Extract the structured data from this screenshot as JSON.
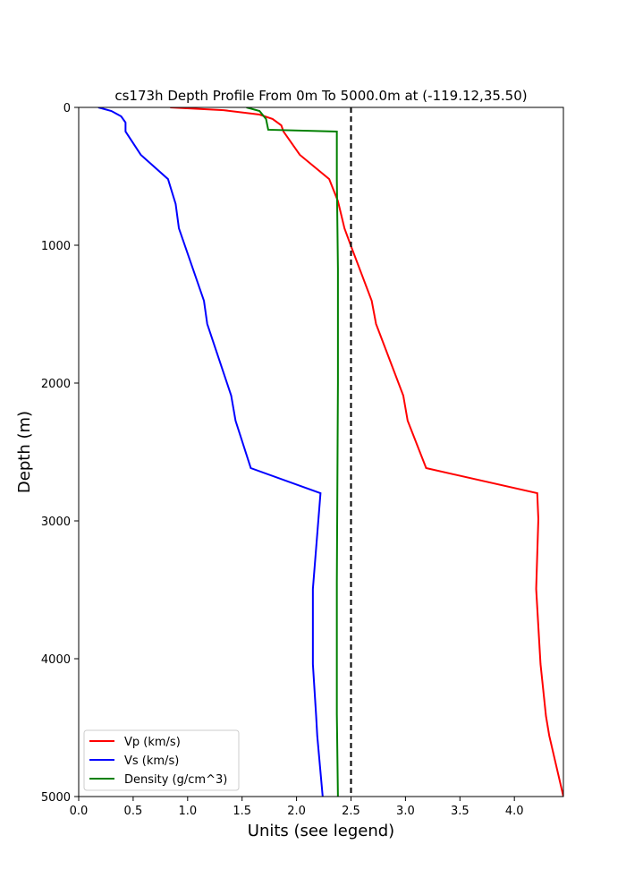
{
  "chart_data": {
    "type": "line",
    "title": "cs173h Depth Profile From 0m To 5000.0m at (-119.12,35.50)",
    "xlabel": "Units (see legend)",
    "ylabel": "Depth (m)",
    "xlim": [
      0,
      4.45
    ],
    "ylim": [
      5000,
      0
    ],
    "xticks": [
      "0.0",
      "0.5",
      "1.0",
      "1.5",
      "2.0",
      "2.5",
      "3.0",
      "3.5",
      "4.0"
    ],
    "yticks": [
      "0",
      "1000",
      "2000",
      "3000",
      "4000",
      "5000"
    ],
    "legend_position": "lower-left",
    "reference_line": {
      "x": 2.5,
      "style": "dashed",
      "color": "#000000"
    },
    "series": [
      {
        "name": "Vp (km/s)",
        "color": "#ff0000",
        "x": [
          0.84,
          1.33,
          1.66,
          1.78,
          1.86,
          1.88,
          2.03,
          2.3,
          2.38,
          2.44,
          2.5,
          2.69,
          2.73,
          2.98,
          3.02,
          3.19,
          4.21,
          4.22,
          4.2,
          4.24,
          4.29,
          4.32,
          4.45
        ],
        "depth": [
          0,
          20,
          52,
          84,
          130,
          175,
          344,
          520,
          680,
          877,
          1006,
          1403,
          1571,
          2091,
          2273,
          2617,
          2799,
          2987,
          3494,
          4039,
          4416,
          4558,
          5000
        ]
      },
      {
        "name": "Vs (km/s)",
        "color": "#0000ff",
        "x": [
          0.18,
          0.3,
          0.39,
          0.43,
          0.43,
          0.57,
          0.82,
          0.89,
          0.92,
          1.15,
          1.18,
          1.4,
          1.44,
          1.58,
          2.22,
          2.15,
          2.15,
          2.18,
          2.19,
          2.24
        ],
        "depth": [
          0,
          26,
          65,
          110,
          175,
          344,
          520,
          700,
          877,
          1403,
          1571,
          2091,
          2273,
          2617,
          2799,
          3494,
          4039,
          4416,
          4558,
          5000
        ]
      },
      {
        "name": "Density (g/cm^3)",
        "color": "#008000",
        "x": [
          1.54,
          1.66,
          1.72,
          1.74,
          2.37,
          2.37,
          2.38,
          2.38,
          2.37,
          2.37,
          2.38
        ],
        "depth": [
          0,
          26,
          84,
          162,
          175,
          520,
          1169,
          2000,
          3450,
          4400,
          5000
        ]
      }
    ]
  }
}
